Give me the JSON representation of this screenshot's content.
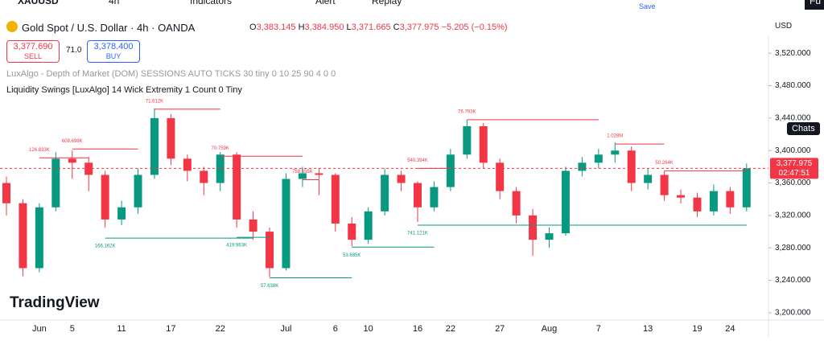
{
  "toolbar": {
    "symbol": "XAUUSD",
    "interval": "4h",
    "indicators": "Indicators",
    "alert": "Alert",
    "replay": "Replay",
    "save": "Save",
    "user": "Fu"
  },
  "header": {
    "title": "Gold Spot / U.S. Dollar · 4h · OANDA",
    "o_label": "O",
    "open": "3,383.145",
    "h_label": "H",
    "high": "3,384.950",
    "l_label": "L",
    "low": "3,371.665",
    "c_label": "C",
    "close": "3,377.975",
    "change": "−5.205 (−0.15%)"
  },
  "trade": {
    "sell_price": "3,377.690",
    "sell": "SELL",
    "spread": "71.0",
    "buy_price": "3,378.400",
    "buy": "BUY"
  },
  "indicators": [
    "LuxAlgo - Depth of Market (DOM) SESSIONS AUTO TICKS 30 tiny 0 10 25 90 4 0 0",
    "Liquidity Swings [LuxAlgo] 14 Wick Extremity 1 Count 0 Tiny"
  ],
  "currency": "USD",
  "chats": "Chats",
  "brand": "TradingView",
  "chart_data": {
    "type": "candlestick",
    "categories": [
      null,
      null,
      "Jun",
      null,
      "5",
      null,
      null,
      "11",
      null,
      null,
      "17",
      null,
      null,
      "22",
      null,
      null,
      null,
      "Jul",
      null,
      null,
      "6",
      null,
      "10",
      null,
      null,
      "16",
      null,
      "22",
      null,
      null,
      "27",
      null,
      null,
      "Aug",
      null,
      null,
      "7",
      null,
      null,
      "13",
      null,
      null,
      "19",
      null,
      "24",
      null
    ],
    "open": [
      3360,
      3335,
      3255,
      3330,
      3390,
      3385,
      3370,
      3315,
      3330,
      3370,
      3440,
      3390,
      3375,
      3360,
      3395,
      3315,
      3300,
      3255,
      3365,
      3372,
      3370,
      3310,
      3290,
      3325,
      3370,
      3360,
      3330,
      3355,
      3395,
      3430,
      3385,
      3350,
      3320,
      3290,
      3298,
      3375,
      3385,
      3395,
      3400,
      3360,
      3370,
      3345,
      3342,
      3325,
      3350,
      3330
    ],
    "high": [
      3368,
      3340,
      3335,
      3398,
      3400,
      3392,
      3375,
      3338,
      3378,
      3452,
      3445,
      3395,
      3380,
      3398,
      3398,
      3325,
      3305,
      3372,
      3380,
      3378,
      3372,
      3318,
      3330,
      3378,
      3375,
      3362,
      3362,
      3402,
      3438,
      3434,
      3390,
      3355,
      3328,
      3305,
      3380,
      3392,
      3402,
      3410,
      3405,
      3378,
      3375,
      3352,
      3348,
      3358,
      3355,
      3384
    ],
    "low": [
      3320,
      3245,
      3250,
      3325,
      3365,
      3350,
      3305,
      3308,
      3322,
      3365,
      3382,
      3362,
      3345,
      3350,
      3305,
      3290,
      3244,
      3252,
      3355,
      3345,
      3300,
      3282,
      3285,
      3320,
      3350,
      3312,
      3325,
      3350,
      3390,
      3378,
      3340,
      3310,
      3270,
      3280,
      3295,
      3368,
      3378,
      3385,
      3350,
      3352,
      3338,
      3335,
      3318,
      3320,
      3322,
      3325
    ],
    "close": [
      3335,
      3255,
      3330,
      3390,
      3385,
      3370,
      3315,
      3330,
      3370,
      3440,
      3390,
      3375,
      3360,
      3395,
      3315,
      3300,
      3255,
      3365,
      3372,
      3370,
      3310,
      3290,
      3325,
      3370,
      3360,
      3330,
      3355,
      3395,
      3430,
      3385,
      3350,
      3320,
      3290,
      3298,
      3375,
      3385,
      3395,
      3400,
      3360,
      3370,
      3345,
      3342,
      3325,
      3350,
      3330,
      3378
    ],
    "up_color": "#089981",
    "down_color": "#f23645",
    "ylim": [
      3191,
      3542
    ],
    "yticks": [
      {
        "value": 3200,
        "label": "3,200.000"
      },
      {
        "value": 3240,
        "label": "3,240.000"
      },
      {
        "value": 3280,
        "label": "3,280.000"
      },
      {
        "value": 3320,
        "label": "3,320.000"
      },
      {
        "value": 3360,
        "label": "3,360.000"
      },
      {
        "value": 3400,
        "label": "3,400.000"
      },
      {
        "value": 3440,
        "label": "3,440.000"
      },
      {
        "value": 3480,
        "label": "3,480.000"
      },
      {
        "value": 3520,
        "label": "3,520.000"
      }
    ],
    "levels": [
      {
        "label": "126.833K",
        "price": 3391,
        "side": "high",
        "at": 2,
        "to": 5
      },
      {
        "label": "608.698K",
        "price": 3402,
        "side": "high",
        "at": 4,
        "to": 8
      },
      {
        "label": "71.612K",
        "price": 3451,
        "side": "high",
        "at": 9,
        "to": 13
      },
      {
        "label": "70.759K",
        "price": 3393,
        "side": "high",
        "at": 13,
        "to": 18
      },
      {
        "label": "758.555K",
        "price": 3364,
        "side": "high",
        "at": 18,
        "to": 19
      },
      {
        "label": "540.394K",
        "price": 3378,
        "side": "high",
        "at": 25,
        "to": 27
      },
      {
        "label": "76.793K",
        "price": 3438,
        "side": "high",
        "at": 28,
        "to": 36
      },
      {
        "label": "1.028M",
        "price": 3408,
        "side": "high",
        "at": 37,
        "to": 40
      },
      {
        "label": "50.264K",
        "price": 3375,
        "side": "high",
        "at": 40,
        "to": 45
      },
      {
        "label": "166.162K",
        "price": 3292,
        "side": "low",
        "at": 6,
        "to": 15
      },
      {
        "label": "419.963K",
        "price": 3293,
        "side": "low",
        "at": 14,
        "to": 16
      },
      {
        "label": "57.638K",
        "price": 3243,
        "side": "low",
        "at": 16,
        "to": 21
      },
      {
        "label": "53.685K",
        "price": 3281,
        "side": "low",
        "at": 21,
        "to": 26
      },
      {
        "label": "741.121K",
        "price": 3308,
        "side": "low",
        "at": 25,
        "to": 45
      }
    ],
    "last_price": {
      "value": 3377.975,
      "label": "3,377.975"
    },
    "countdown": "02:47:51"
  }
}
